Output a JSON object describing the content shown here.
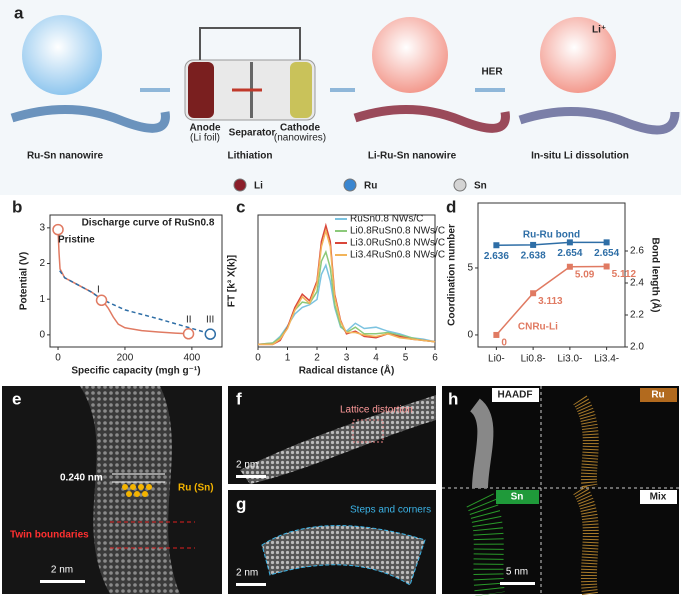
{
  "panel_a": {
    "label": "a",
    "steps": [
      "Ru-Sn nanowire",
      "Lithiation",
      "Li-Ru-Sn nanowire",
      "In-situ Li dissolution"
    ],
    "anode": "Anode",
    "anode_note": "(Li foil)",
    "separator": "Separator",
    "cathode": "Cathode",
    "cathode_note": "(nanowires)",
    "her": "HER",
    "ion": "Li⁺",
    "legend": [
      {
        "name": "Li",
        "color": "#8b1e2a"
      },
      {
        "name": "Ru",
        "color": "#3a86d0"
      },
      {
        "name": "Sn",
        "color": "#d4d4d4"
      }
    ]
  },
  "chart_data": [
    {
      "type": "line",
      "label": "b",
      "title": "Discharge curve of RuSn0.8",
      "x_label": "Specific capacity (mgh g⁻¹)",
      "y_label": "Potential (V)",
      "xlim": [
        -24,
        490
      ],
      "xticks": [
        0,
        200,
        400
      ],
      "ylim": [
        -0.34,
        3.36
      ],
      "yticks": [
        0,
        1,
        2,
        3
      ],
      "series": [
        {
          "color": "#e07a62",
          "dash": false,
          "x": [
            0,
            3,
            6,
            20,
            60,
            100,
            130,
            150,
            165,
            180,
            200,
            250,
            300,
            350,
            390
          ],
          "values": [
            2.95,
            2.3,
            1.85,
            1.6,
            1.4,
            1.2,
            1.0,
            0.75,
            0.5,
            0.3,
            0.2,
            0.12,
            0.08,
            0.05,
            0.03
          ]
        },
        {
          "color": "#2e6ea6",
          "dash": true,
          "x": [
            5,
            20,
            60,
            100,
            130,
            200,
            300,
            400,
            455
          ],
          "values": [
            1.8,
            1.6,
            1.4,
            1.2,
            1.0,
            0.7,
            0.45,
            0.18,
            0.03
          ]
        }
      ],
      "markers": {
        "x": [
          0,
          130,
          390,
          455
        ],
        "values": [
          2.95,
          0.97,
          0.03,
          0.02
        ],
        "colors": [
          "#e07a62",
          "#e07a62",
          "#e07a62",
          "#2e6ea6"
        ]
      },
      "annotations": [
        "Pristine",
        "I",
        "II",
        "III"
      ]
    },
    {
      "type": "line",
      "label": "c",
      "x_label": "Radical distance (Å)",
      "y_label": "FT [k³ X(k)]",
      "xlim": [
        0,
        6
      ],
      "xticks": [
        0,
        1,
        2,
        3,
        4,
        5,
        6
      ],
      "ylim": [
        0,
        10
      ],
      "legend": "top-right",
      "x": [
        0,
        0.5,
        0.75,
        1.0,
        1.25,
        1.5,
        1.75,
        2.0,
        2.15,
        2.3,
        2.45,
        2.6,
        2.8,
        3.0,
        3.3,
        3.6,
        4.0,
        4.4,
        4.8,
        5.2,
        5.6,
        6.0
      ],
      "series": [
        {
          "name": "RuSn0.8 NWs/C",
          "color": "#7cc3e0",
          "values": [
            0.2,
            0.3,
            0.8,
            1.6,
            2.5,
            3,
            3.2,
            3.6,
            5.5,
            6.2,
            5,
            3,
            1.5,
            1.2,
            1.8,
            1.4,
            1.5,
            1.2,
            1,
            0.7,
            0.6,
            0.4
          ]
        },
        {
          "name": "Li0.8RuSn0.8 NWs/C",
          "color": "#8cc97a",
          "values": [
            0.2,
            0.3,
            0.7,
            1.5,
            2.8,
            3.4,
            3.3,
            4.2,
            6.5,
            7.2,
            6,
            3.2,
            1.6,
            1.1,
            1.5,
            1.0,
            1.0,
            1.1,
            0.9,
            0.7,
            0.5,
            0.4
          ]
        },
        {
          "name": "Li3.0RuSn0.8 NWs/C",
          "color": "#d9473a",
          "values": [
            0.2,
            0.2,
            0.5,
            1.5,
            3,
            4,
            3.5,
            5,
            8,
            9.2,
            8,
            4,
            2,
            1,
            1.2,
            0.8,
            0.7,
            1,
            0.8,
            0.6,
            0.5,
            0.4
          ]
        },
        {
          "name": "Li3.4RuSn0.8 NWs/C",
          "color": "#f2b45a",
          "values": [
            0.2,
            0.2,
            0.6,
            1.4,
            2.8,
            3.8,
            3.3,
            4.8,
            7.6,
            8.8,
            7.6,
            3.8,
            1.9,
            1.1,
            1.1,
            0.9,
            0.8,
            1,
            0.7,
            0.6,
            0.5,
            0.4
          ]
        }
      ]
    },
    {
      "type": "line",
      "label": "d",
      "categories": [
        "Li0-",
        "Li0.8-",
        "Li3.0-",
        "Li3.4-"
      ],
      "y_label": "Coordination number",
      "y2_label": "Bond length (Å)",
      "ylim": [
        -0.9,
        9.85
      ],
      "yticks": [
        0,
        5
      ],
      "y2lim": [
        2.0,
        2.9
      ],
      "y2ticks": [
        {
          "value": 2,
          "label": "2.0"
        },
        2.2,
        2.4,
        2.6
      ],
      "show_values": true,
      "series": [
        {
          "name": "Ru-Ru bond",
          "color": "#2e6ea6",
          "axis": "y2",
          "marker": "square",
          "values": [
            2.636,
            2.638,
            2.654,
            2.654
          ]
        },
        {
          "name": "CNRu-Li",
          "color": "#e07a62",
          "marker": "square",
          "values": [
            0,
            3.113,
            5.09,
            5.112
          ]
        }
      ]
    }
  ],
  "panel_e": {
    "label": "e",
    "spacing": "0.240 nm",
    "atoms": "Ru (Sn)",
    "twin": "Twin boundaries",
    "scale": "2 nm"
  },
  "panel_f": {
    "label": "f",
    "note": "Lattice distortion",
    "scale": "2 nm"
  },
  "panel_g": {
    "label": "g",
    "note": "Steps and corners",
    "scale": "2 nm"
  },
  "panel_h": {
    "label": "h",
    "maps": [
      "HAADF",
      "Ru",
      "Sn",
      "Mix"
    ],
    "scale": "5 nm"
  }
}
